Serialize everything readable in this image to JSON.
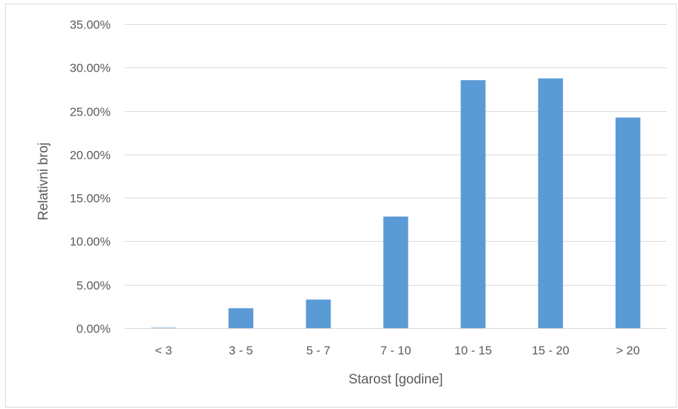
{
  "chart_data": {
    "type": "bar",
    "title": "",
    "xlabel": "Starost [godine]",
    "ylabel": "Relativni broj",
    "categories": [
      "< 3",
      "3 - 5",
      "5 - 7",
      "7 - 10",
      "10 - 15",
      "15 - 20",
      "> 20"
    ],
    "values": [
      0.05,
      2.3,
      3.3,
      12.85,
      28.55,
      28.75,
      24.25
    ],
    "ylim": [
      0,
      35
    ],
    "yticks": [
      0,
      5,
      10,
      15,
      20,
      25,
      30,
      35
    ],
    "ytick_labels": [
      "0.00%",
      "5.00%",
      "10.00%",
      "15.00%",
      "20.00%",
      "25.00%",
      "30.00%",
      "35.00%"
    ],
    "grid": true,
    "legend": "none",
    "bar_color": "#5b9bd5",
    "grid_color": "#d9d9d9",
    "text_color": "#595959"
  }
}
